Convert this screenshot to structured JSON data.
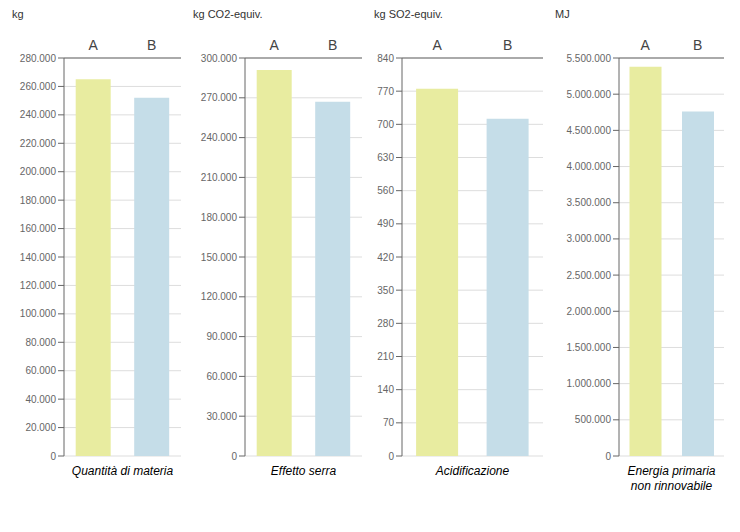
{
  "chart_data": [
    {
      "type": "bar",
      "ylabel": "kg",
      "xlabel": "Quantità di materia",
      "categories": [
        "A",
        "B"
      ],
      "values": [
        265000,
        252000
      ],
      "colors": [
        "#e8eca0",
        "#c5dde8"
      ],
      "ylim": [
        0,
        280000
      ],
      "yticks": [
        0,
        {
          "value": 20000,
          "label": "20.000"
        },
        {
          "value": 40000,
          "label": "40.000"
        },
        {
          "value": 60000,
          "label": "60.000"
        },
        {
          "value": 80000,
          "label": "80.000"
        },
        {
          "value": 100000,
          "label": "100.000"
        },
        {
          "value": 120000,
          "label": "120.000"
        },
        {
          "value": 140000,
          "label": "140.000"
        },
        {
          "value": 160000,
          "label": "160.000"
        },
        {
          "value": 180000,
          "label": "180.000"
        },
        {
          "value": 200000,
          "label": "200.000"
        },
        {
          "value": 220000,
          "label": "220.000"
        },
        {
          "value": 240000,
          "label": "240.000"
        },
        {
          "value": 260000,
          "label": "260.000"
        },
        {
          "value": 280000,
          "label": "280.000"
        }
      ],
      "grid": true
    },
    {
      "type": "bar",
      "ylabel": "kg CO2-equiv.",
      "xlabel": "Effetto serra",
      "categories": [
        "A",
        "B"
      ],
      "values": [
        291000,
        267000
      ],
      "colors": [
        "#e8eca0",
        "#c5dde8"
      ],
      "ylim": [
        0,
        300000
      ],
      "yticks": [
        0,
        {
          "value": 30000,
          "label": "30.000"
        },
        {
          "value": 60000,
          "label": "60.000"
        },
        {
          "value": 90000,
          "label": "90.000"
        },
        {
          "value": 120000,
          "label": "120.000"
        },
        {
          "value": 150000,
          "label": "150.000"
        },
        {
          "value": 180000,
          "label": "180.000"
        },
        {
          "value": 210000,
          "label": "210.000"
        },
        {
          "value": 240000,
          "label": "240.000"
        },
        {
          "value": 270000,
          "label": "270.000"
        },
        {
          "value": 300000,
          "label": "300.000"
        }
      ],
      "grid": true
    },
    {
      "type": "bar",
      "ylabel": "kg SO2-equiv.",
      "xlabel": "Acidificazione",
      "categories": [
        "A",
        "B"
      ],
      "values": [
        775,
        712
      ],
      "colors": [
        "#e8eca0",
        "#c5dde8"
      ],
      "ylim": [
        0,
        840
      ],
      "yticks": [
        0,
        70,
        140,
        210,
        280,
        350,
        420,
        490,
        560,
        630,
        700,
        770,
        840
      ],
      "grid": true
    },
    {
      "type": "bar",
      "ylabel": "MJ",
      "xlabel": "Energia primaria\nnon rinnovabile",
      "categories": [
        "A",
        "B"
      ],
      "values": [
        5380000,
        4760000
      ],
      "colors": [
        "#e8eca0",
        "#c5dde8"
      ],
      "ylim": [
        0,
        5500000
      ],
      "yticks": [
        0,
        {
          "value": 500000,
          "label": "500.000"
        },
        {
          "value": 1000000,
          "label": "1.000.000"
        },
        {
          "value": 1500000,
          "label": "1.500.000"
        },
        {
          "value": 2000000,
          "label": "2.000.000"
        },
        {
          "value": 2500000,
          "label": "2.500.000"
        },
        {
          "value": 3000000,
          "label": "3.000.000"
        },
        {
          "value": 3500000,
          "label": "3.500.000"
        },
        {
          "value": 4000000,
          "label": "4.000.000"
        },
        {
          "value": 4500000,
          "label": "4.500.000"
        },
        {
          "value": 5000000,
          "label": "5.000.000"
        },
        {
          "value": 5500000,
          "label": "5.500.000"
        }
      ],
      "grid": true
    }
  ]
}
